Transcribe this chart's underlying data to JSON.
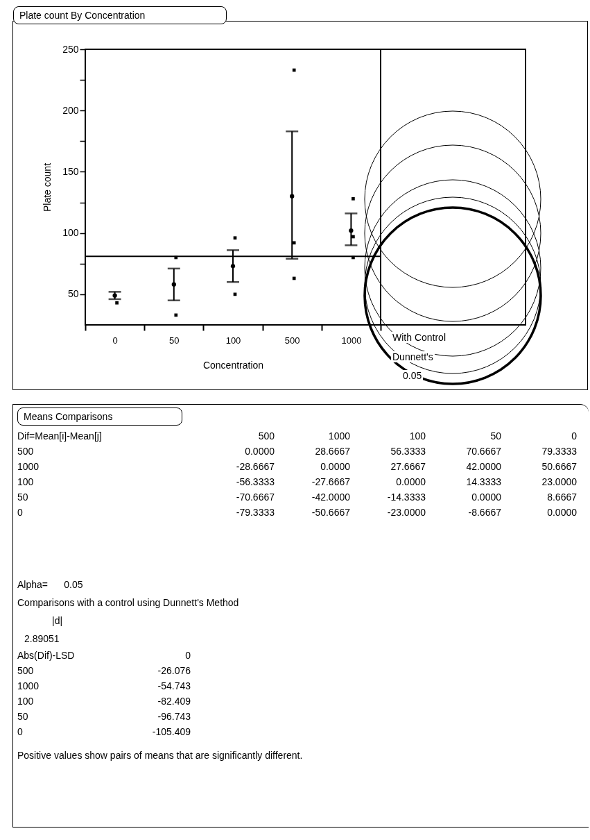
{
  "chart_data": [
    {
      "type": "scatter",
      "title": "Plate count By Concentration",
      "xlabel": "Concentration",
      "ylabel": "Plate count",
      "categories": [
        "0",
        "50",
        "100",
        "500",
        "1000"
      ],
      "series": [
        {
          "type": "scatter",
          "color": "#000000",
          "marker": "circle",
          "values": [
            49,
            58,
            73,
            130,
            102
          ],
          "errors": [
            [
              46,
              52
            ],
            [
              45,
              71
            ],
            [
              60,
              86
            ],
            [
              79,
              183
            ],
            [
              90,
              116
            ]
          ]
        },
        {
          "type": "scatter",
          "color": "#000000",
          "marker": "square",
          "values": [
            43,
            80,
            96,
            233,
            128
          ]
        },
        {
          "type": "scatter",
          "color": "#000000",
          "marker": "square",
          "values": [
            null,
            33,
            50,
            92,
            97
          ]
        },
        {
          "type": "scatter",
          "color": "#000000",
          "marker": "square",
          "values": [
            null,
            null,
            null,
            63,
            80
          ]
        }
      ],
      "ylim": [
        25,
        250
      ],
      "yticks": [
        50,
        {
          "value": 75,
          "label": null
        },
        100,
        {
          "value": 125,
          "label": null
        },
        150,
        {
          "value": 175,
          "label": null
        },
        200,
        {
          "value": 225,
          "label": null
        },
        250
      ],
      "ref_lines": [
        {
          "axis": "y",
          "value": 81
        }
      ],
      "annotations": [
        "With Control",
        "Dunnett's",
        "0.05"
      ]
    },
    {
      "type": "other",
      "title": "Means Comparisons",
      "subtitle": "Dif=Mean[i]-Mean[j]",
      "categories": [
        "500",
        "1000",
        "100",
        "50",
        "0"
      ],
      "y_categories": [
        "500",
        "1000",
        "100",
        "50",
        "0"
      ],
      "cell_labels": [
        [
          "0.0000",
          "28.6667",
          "56.3333",
          "70.6667",
          "79.3333"
        ],
        [
          "-28.6667",
          "0.0000",
          "27.6667",
          "42.0000",
          "50.6667"
        ],
        [
          "-56.3333",
          "-27.6667",
          "0.0000",
          "14.3333",
          "23.0000"
        ],
        [
          "-70.6667",
          "-42.0000",
          "-14.3333",
          "0.0000",
          "8.6667"
        ],
        [
          "-79.3333",
          "-50.6667",
          "-23.0000",
          "-8.6667",
          "0.0000"
        ]
      ]
    },
    {
      "type": "other",
      "subtitle": "Abs(Dif)-LSD",
      "annotations": [
        "Alpha=      0.05",
        "Comparisons with a control using Dunnett's Method",
        "|d|",
        "2.89051",
        "Positive values show pairs of means that are significantly different."
      ],
      "categories": [
        "0"
      ],
      "y_categories": [
        "500",
        "1000",
        "100",
        "50",
        "0"
      ],
      "cell_labels": [
        [
          "-26.076"
        ],
        [
          "-54.743"
        ],
        [
          "-82.409"
        ],
        [
          "-96.743"
        ],
        [
          "-105.409"
        ]
      ]
    }
  ]
}
